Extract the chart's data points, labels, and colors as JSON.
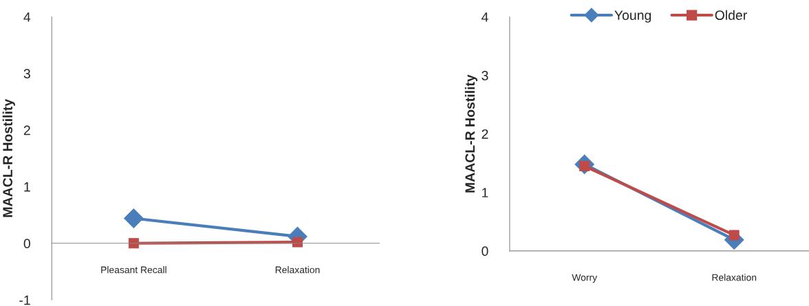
{
  "chart_data": [
    {
      "type": "line",
      "ylabel": "MAACL-R Hostility",
      "categories": [
        "Pleasant Recall",
        "Relaxation"
      ],
      "ylim": [
        -1,
        4
      ],
      "yticks": [
        -1,
        0,
        1,
        2,
        3,
        4
      ],
      "grid": false,
      "legend": false,
      "line_style": "solid",
      "series": [
        {
          "color": "#4a7ebb",
          "marker": "diamond",
          "values": [
            0.44,
            0.12
          ]
        },
        {
          "color": "#be4b48",
          "marker": "square",
          "values": [
            0.0,
            0.02
          ]
        }
      ]
    },
    {
      "type": "line",
      "ylabel": "MAACL-R Hostility",
      "categories": [
        "Worry",
        "Relaxation"
      ],
      "ylim": [
        0,
        4
      ],
      "yticks": [
        0,
        1,
        2,
        3,
        4
      ],
      "grid": false,
      "legend": "top",
      "line_style": "solid",
      "series": [
        {
          "name": "Young",
          "color": "#4a7ebb",
          "marker": "diamond",
          "values": [
            1.48,
            0.19
          ]
        },
        {
          "name": "Older",
          "color": "#be4b48",
          "marker": "square",
          "values": [
            1.45,
            0.27
          ]
        }
      ]
    }
  ]
}
